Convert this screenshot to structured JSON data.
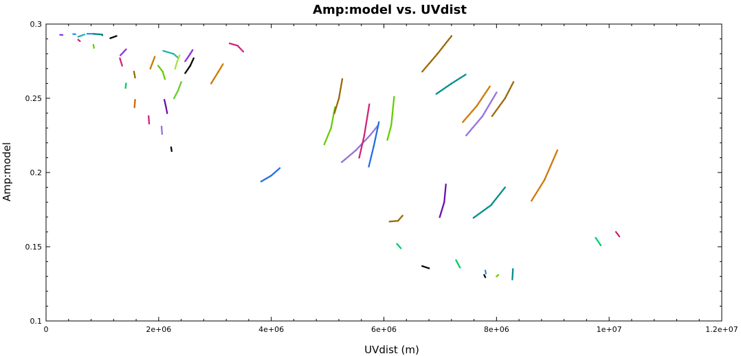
{
  "chart_data": {
    "type": "scatter",
    "title": "Amp:model vs. UVdist",
    "xlabel": "UVdist (m)",
    "ylabel": "Amp:model",
    "xlim": [
      0,
      12000000
    ],
    "ylim": [
      0.1,
      0.3
    ],
    "x_ticks": [
      {
        "value": 0,
        "label": "0"
      },
      {
        "value": 2000000,
        "label": "2e+06"
      },
      {
        "value": 4000000,
        "label": "4e+06"
      },
      {
        "value": 6000000,
        "label": "6e+06"
      },
      {
        "value": 8000000,
        "label": "8e+06"
      },
      {
        "value": 10000000,
        "label": "1e+07"
      },
      {
        "value": 12000000,
        "label": "1.2e+07"
      }
    ],
    "y_ticks": [
      {
        "value": 0.1,
        "label": "0.1"
      },
      {
        "value": 0.15,
        "label": "0.15"
      },
      {
        "value": 0.2,
        "label": "0.2"
      },
      {
        "value": 0.25,
        "label": "0.25"
      },
      {
        "value": 0.3,
        "label": "0.3"
      }
    ],
    "grid": false,
    "legend": "none",
    "segments": [
      {
        "color": "#8a2be2",
        "points": [
          [
            250000,
            0.2928
          ],
          [
            290000,
            0.2927
          ]
        ]
      },
      {
        "color": "#1e90ff",
        "points": [
          [
            480000,
            0.2933
          ],
          [
            520000,
            0.2932
          ]
        ]
      },
      {
        "color": "#cc2277",
        "points": [
          [
            570000,
            0.2895
          ],
          [
            600000,
            0.2885
          ]
        ]
      },
      {
        "color": "#20b2aa",
        "points": [
          [
            570000,
            0.2915
          ],
          [
            680000,
            0.293
          ]
        ]
      },
      {
        "color": "#1e90ff",
        "points": [
          [
            730000,
            0.2935
          ],
          [
            850000,
            0.2935
          ]
        ]
      },
      {
        "color": "#008080",
        "points": [
          [
            850000,
            0.2934
          ],
          [
            990000,
            0.293
          ],
          [
            1000000,
            0.2925
          ]
        ]
      },
      {
        "color": "#66cc00",
        "points": [
          [
            840000,
            0.286
          ],
          [
            850000,
            0.284
          ]
        ]
      },
      {
        "color": "#000000",
        "points": [
          [
            1140000,
            0.2905
          ],
          [
            1250000,
            0.292
          ]
        ]
      },
      {
        "color": "#8a2be2",
        "points": [
          [
            1320000,
            0.279
          ],
          [
            1420000,
            0.283
          ]
        ]
      },
      {
        "color": "#cc2277",
        "points": [
          [
            1310000,
            0.277
          ],
          [
            1350000,
            0.272
          ]
        ]
      },
      {
        "color": "#00cc66",
        "points": [
          [
            1420000,
            0.26
          ],
          [
            1410000,
            0.257
          ]
        ]
      },
      {
        "color": "#996600",
        "points": [
          [
            1560000,
            0.268
          ],
          [
            1580000,
            0.264
          ]
        ]
      },
      {
        "color": "#cc6600",
        "points": [
          [
            1580000,
            0.249
          ],
          [
            1570000,
            0.244
          ]
        ]
      },
      {
        "color": "#cc7700",
        "points": [
          [
            1850000,
            0.27
          ],
          [
            1930000,
            0.278
          ]
        ]
      },
      {
        "color": "#cc2277",
        "points": [
          [
            1820000,
            0.238
          ],
          [
            1830000,
            0.233
          ]
        ]
      },
      {
        "color": "#66cc00",
        "points": [
          [
            1990000,
            0.272
          ],
          [
            2070000,
            0.268
          ],
          [
            2110000,
            0.263
          ]
        ]
      },
      {
        "color": "#20b2aa",
        "points": [
          [
            2080000,
            0.282
          ],
          [
            2260000,
            0.28
          ],
          [
            2340000,
            0.2775
          ]
        ]
      },
      {
        "color": "#a8e040",
        "points": [
          [
            2290000,
            0.27
          ],
          [
            2330000,
            0.275
          ],
          [
            2370000,
            0.279
          ]
        ]
      },
      {
        "color": "#6a0dad",
        "points": [
          [
            2100000,
            0.249
          ],
          [
            2130000,
            0.244
          ],
          [
            2150000,
            0.24
          ]
        ]
      },
      {
        "color": "#66cc33",
        "points": [
          [
            2270000,
            0.25
          ],
          [
            2340000,
            0.255
          ],
          [
            2400000,
            0.261
          ]
        ]
      },
      {
        "color": "#9370db",
        "points": [
          [
            2050000,
            0.231
          ],
          [
            2060000,
            0.226
          ]
        ]
      },
      {
        "color": "#000000",
        "points": [
          [
            2220000,
            0.217
          ],
          [
            2230000,
            0.2145
          ]
        ]
      },
      {
        "color": "#8a2be2",
        "points": [
          [
            2470000,
            0.275
          ],
          [
            2560000,
            0.28
          ],
          [
            2600000,
            0.2825
          ]
        ]
      },
      {
        "color": "#000000",
        "points": [
          [
            2470000,
            0.267
          ],
          [
            2560000,
            0.272
          ],
          [
            2620000,
            0.277
          ]
        ]
      },
      {
        "color": "#cc7700",
        "points": [
          [
            2930000,
            0.26
          ],
          [
            3060000,
            0.268
          ],
          [
            3140000,
            0.273
          ]
        ]
      },
      {
        "color": "#cc2277",
        "points": [
          [
            3260000,
            0.287
          ],
          [
            3400000,
            0.2855
          ],
          [
            3500000,
            0.2815
          ]
        ]
      },
      {
        "color": "#1e6fe0",
        "points": [
          [
            3820000,
            0.194
          ],
          [
            4000000,
            0.198
          ],
          [
            4150000,
            0.203
          ]
        ]
      },
      {
        "color": "#66cc00",
        "points": [
          [
            4940000,
            0.219
          ],
          [
            5060000,
            0.23
          ],
          [
            5130000,
            0.244
          ]
        ]
      },
      {
        "color": "#996600",
        "points": [
          [
            5120000,
            0.24
          ],
          [
            5200000,
            0.25
          ],
          [
            5260000,
            0.263
          ]
        ]
      },
      {
        "color": "#9370db",
        "points": [
          [
            5250000,
            0.207
          ],
          [
            5500000,
            0.215
          ],
          [
            5750000,
            0.225
          ],
          [
            5900000,
            0.232
          ]
        ]
      },
      {
        "color": "#cc2277",
        "points": [
          [
            5560000,
            0.21
          ],
          [
            5650000,
            0.225
          ],
          [
            5740000,
            0.246
          ]
        ]
      },
      {
        "color": "#1e6fe0",
        "points": [
          [
            5730000,
            0.204
          ],
          [
            5820000,
            0.218
          ],
          [
            5910000,
            0.234
          ]
        ]
      },
      {
        "color": "#66cc00",
        "points": [
          [
            6060000,
            0.222
          ],
          [
            6130000,
            0.232
          ],
          [
            6180000,
            0.251
          ]
        ]
      },
      {
        "color": "#996600",
        "points": [
          [
            6100000,
            0.167
          ],
          [
            6250000,
            0.1675
          ],
          [
            6330000,
            0.171
          ]
        ]
      },
      {
        "color": "#00cc66",
        "points": [
          [
            6230000,
            0.152
          ],
          [
            6300000,
            0.149
          ]
        ]
      },
      {
        "color": "#996600",
        "points": [
          [
            6680000,
            0.268
          ],
          [
            6950000,
            0.28
          ],
          [
            7200000,
            0.292
          ]
        ]
      },
      {
        "color": "#008b8b",
        "points": [
          [
            6930000,
            0.253
          ],
          [
            7200000,
            0.26
          ],
          [
            7450000,
            0.266
          ]
        ]
      },
      {
        "color": "#cc7700",
        "points": [
          [
            7400000,
            0.234
          ],
          [
            7650000,
            0.245
          ],
          [
            7880000,
            0.258
          ]
        ]
      },
      {
        "color": "#9370db",
        "points": [
          [
            7460000,
            0.225
          ],
          [
            7750000,
            0.238
          ],
          [
            8000000,
            0.254
          ]
        ]
      },
      {
        "color": "#996600",
        "points": [
          [
            7920000,
            0.238
          ],
          [
            8150000,
            0.25
          ],
          [
            8300000,
            0.261
          ]
        ]
      },
      {
        "color": "#6a0dad",
        "points": [
          [
            6990000,
            0.17
          ],
          [
            7070000,
            0.18
          ],
          [
            7100000,
            0.192
          ]
        ]
      },
      {
        "color": "#008b8b",
        "points": [
          [
            7590000,
            0.1695
          ],
          [
            7900000,
            0.178
          ],
          [
            8150000,
            0.19
          ]
        ]
      },
      {
        "color": "#000000",
        "points": [
          [
            6680000,
            0.137
          ],
          [
            6800000,
            0.1355
          ]
        ]
      },
      {
        "color": "#00cc66",
        "points": [
          [
            7280000,
            0.141
          ],
          [
            7350000,
            0.136
          ]
        ]
      },
      {
        "color": "#000000",
        "points": [
          [
            7780000,
            0.131
          ],
          [
            7800000,
            0.1295
          ]
        ]
      },
      {
        "color": "#1e90ff",
        "points": [
          [
            7800000,
            0.134
          ],
          [
            7810000,
            0.132
          ]
        ]
      },
      {
        "color": "#66cc00",
        "points": [
          [
            8000000,
            0.13
          ],
          [
            8030000,
            0.131
          ]
        ]
      },
      {
        "color": "#008b8b",
        "points": [
          [
            8290000,
            0.135
          ],
          [
            8280000,
            0.128
          ]
        ]
      },
      {
        "color": "#cc7700",
        "points": [
          [
            8620000,
            0.181
          ],
          [
            8850000,
            0.195
          ],
          [
            9080000,
            0.215
          ]
        ]
      },
      {
        "color": "#00cc66",
        "points": [
          [
            9760000,
            0.156
          ],
          [
            9850000,
            0.151
          ]
        ]
      },
      {
        "color": "#cc2277",
        "points": [
          [
            10120000,
            0.16
          ],
          [
            10180000,
            0.157
          ]
        ]
      }
    ]
  }
}
